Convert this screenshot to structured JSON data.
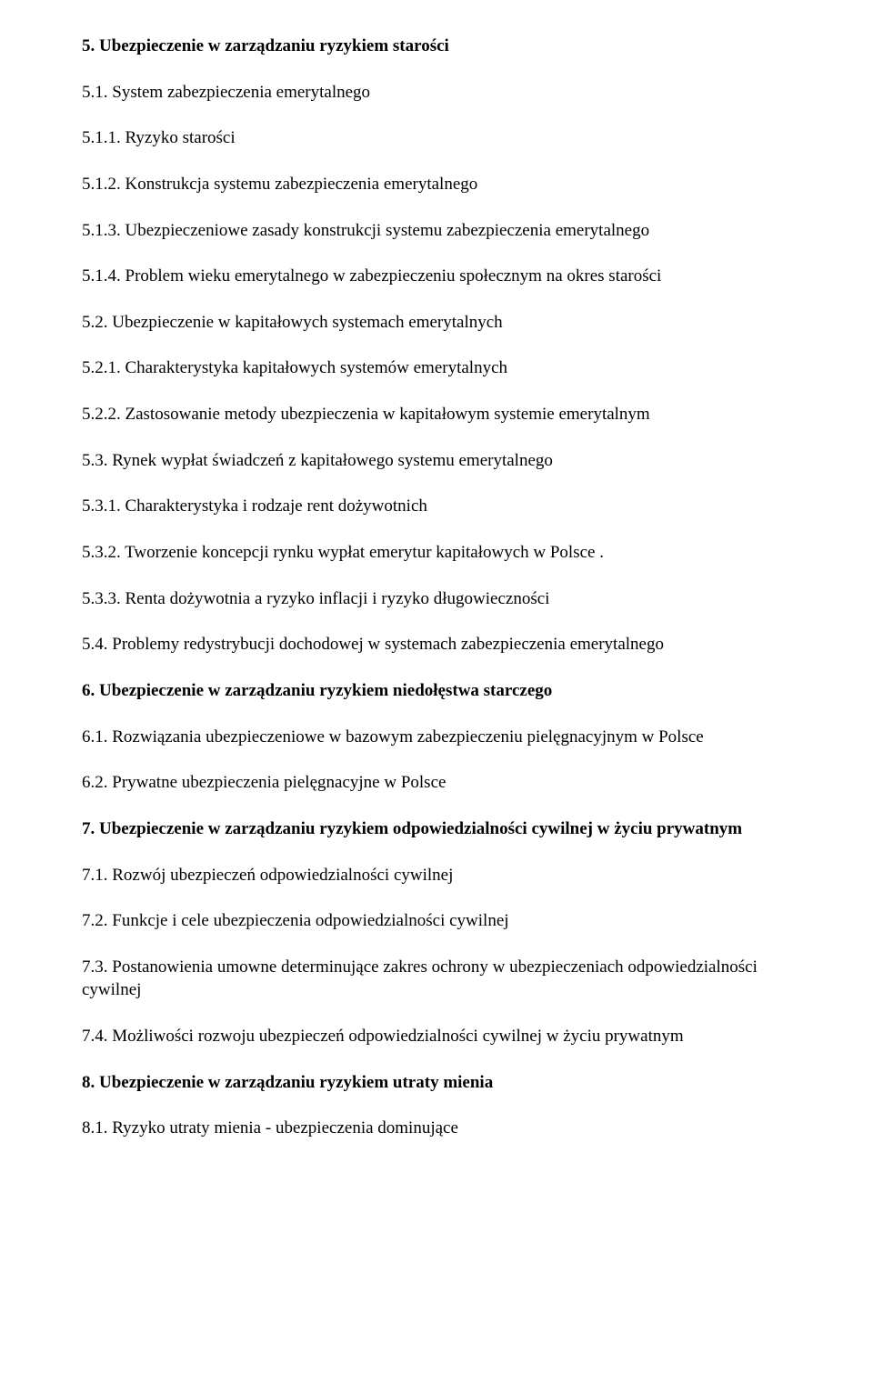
{
  "items": [
    {
      "text": "5. Ubezpieczenie w zarządzaniu ryzykiem starości",
      "bold": true
    },
    {
      "text": "5.1. System zabezpieczenia emerytalnego",
      "bold": false
    },
    {
      "text": "5.1.1. Ryzyko starości",
      "bold": false
    },
    {
      "text": "5.1.2. Konstrukcja systemu zabezpieczenia emerytalnego",
      "bold": false
    },
    {
      "text": "5.1.3. Ubezpieczeniowe zasady konstrukcji systemu zabezpieczenia emerytalnego",
      "bold": false
    },
    {
      "text": "5.1.4. Problem wieku emerytalnego w zabezpieczeniu społecznym na okres starości",
      "bold": false
    },
    {
      "text": "5.2. Ubezpieczenie w kapitałowych systemach emerytalnych",
      "bold": false
    },
    {
      "text": "5.2.1. Charakterystyka kapitałowych systemów emerytalnych",
      "bold": false
    },
    {
      "text": "5.2.2. Zastosowanie metody ubezpieczenia w kapitałowym systemie emerytalnym",
      "bold": false
    },
    {
      "text": "5.3. Rynek wypłat świadczeń z kapitałowego systemu emerytalnego",
      "bold": false
    },
    {
      "text": "5.3.1. Charakterystyka i rodzaje rent dożywotnich",
      "bold": false
    },
    {
      "text": "5.3.2. Tworzenie koncepcji rynku wypłat emerytur kapitałowych w Polsce .",
      "bold": false
    },
    {
      "text": "5.3.3. Renta dożywotnia a ryzyko inflacji i ryzyko długowieczności",
      "bold": false
    },
    {
      "text": "5.4. Problemy redystrybucji dochodowej w systemach zabezpieczenia emerytalnego",
      "bold": false
    },
    {
      "text": "6. Ubezpieczenie w zarządzaniu ryzykiem niedołęstwa starczego",
      "bold": true
    },
    {
      "text": "6.1. Rozwiązania ubezpieczeniowe w bazowym zabezpieczeniu pielęgnacyjnym w Polsce",
      "bold": false
    },
    {
      "text": "6.2. Prywatne ubezpieczenia pielęgnacyjne w Polsce",
      "bold": false
    },
    {
      "text": "7. Ubezpieczenie w zarządzaniu ryzykiem odpowiedzialności cywilnej w życiu prywatnym",
      "bold": true
    },
    {
      "text": "7.1. Rozwój ubezpieczeń odpowiedzialności cywilnej",
      "bold": false
    },
    {
      "text": "7.2. Funkcje i cele ubezpieczenia odpowiedzialności cywilnej",
      "bold": false
    },
    {
      "text": "7.3. Postanowienia umowne determinujące zakres ochrony w ubezpieczeniach odpowiedzialności cywilnej",
      "bold": false
    },
    {
      "text": "7.4. Możliwości rozwoju ubezpieczeń odpowiedzialności cywilnej w życiu prywatnym",
      "bold": false
    },
    {
      "text": "8. Ubezpieczenie w zarządzaniu ryzykiem utraty mienia",
      "bold": true
    },
    {
      "text": "8.1. Ryzyko utraty mienia - ubezpieczenia dominujące",
      "bold": false
    }
  ]
}
